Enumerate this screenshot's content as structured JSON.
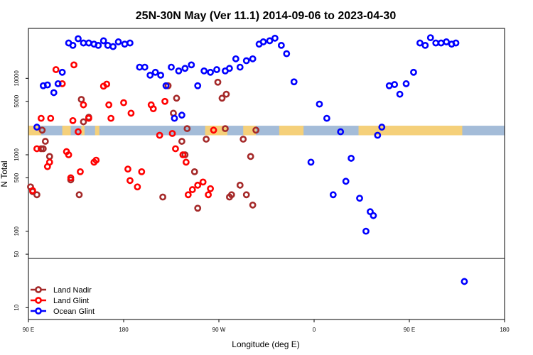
{
  "chart_data": {
    "type": "scatter",
    "title": "25N-30N May (Ver 11.1)   2014-09-06 to 2023-04-30",
    "xlabel": "Longitude (deg E)",
    "ylabel": "N Total",
    "x_range": [
      90,
      540
    ],
    "y_scale": "log",
    "y_range": [
      7,
      45000
    ],
    "x_ticks": [
      {
        "value": 90,
        "label": "90 E"
      },
      {
        "value": 180,
        "label": "180"
      },
      {
        "value": 270,
        "label": "90 W"
      },
      {
        "value": 360,
        "label": "0"
      },
      {
        "value": 450,
        "label": "90 E"
      },
      {
        "value": 540,
        "label": "180"
      }
    ],
    "y_ticks": [
      {
        "value": 10,
        "label": "10"
      },
      {
        "value": 50,
        "label": "50"
      },
      {
        "value": 100,
        "label": "100"
      },
      {
        "value": 500,
        "label": "500"
      },
      {
        "value": 1000,
        "label": "1000"
      },
      {
        "value": 5000,
        "label": "5000"
      },
      {
        "value": 10000,
        "label": "10000"
      }
    ],
    "separator_at": 50,
    "land_band": {
      "y_low": 1800,
      "y_high": 2400
    },
    "legend_position": "bottom-left",
    "colors": {
      "land_nadir": "#a52a2a",
      "land_glint": "#ff0000",
      "ocean_glint": "#0000ff",
      "ocean_band": "#a4bcd8",
      "land_band": "#f5d07a"
    },
    "series": [
      {
        "name": "Land Nadir",
        "color": "#a52a2a",
        "points": [
          [
            92,
            380
          ],
          [
            94,
            330
          ],
          [
            98,
            300
          ],
          [
            102,
            1200
          ],
          [
            103,
            2100
          ],
          [
            104,
            1200
          ],
          [
            106,
            1500
          ],
          [
            110,
            950
          ],
          [
            130,
            470
          ],
          [
            138,
            300
          ],
          [
            140,
            5300
          ],
          [
            142,
            2700
          ],
          [
            147,
            3100
          ],
          [
            217,
            280
          ],
          [
            222,
            8000
          ],
          [
            227,
            3500
          ],
          [
            230,
            5500
          ],
          [
            235,
            1500
          ],
          [
            238,
            1000
          ],
          [
            240,
            2200
          ],
          [
            247,
            600
          ],
          [
            250,
            200
          ],
          [
            258,
            1600
          ],
          [
            269,
            8900
          ],
          [
            273,
            5500
          ],
          [
            276,
            2200
          ],
          [
            277,
            6200
          ],
          [
            280,
            280
          ],
          [
            282,
            300
          ],
          [
            290,
            400
          ],
          [
            293,
            1600
          ],
          [
            296,
            300
          ],
          [
            300,
            950
          ],
          [
            302,
            220
          ],
          [
            305,
            2100
          ]
        ]
      },
      {
        "name": "Land Glint",
        "color": "#ff0000",
        "points": [
          [
            94,
            340
          ],
          [
            98,
            1200
          ],
          [
            102,
            3000
          ],
          [
            108,
            700
          ],
          [
            110,
            800
          ],
          [
            111,
            3000
          ],
          [
            147,
            3000
          ],
          [
            116,
            13000
          ],
          [
            126,
            1100
          ],
          [
            128,
            1000
          ],
          [
            130,
            500
          ],
          [
            132,
            2800
          ],
          [
            122,
            8500
          ],
          [
            133,
            15000
          ],
          [
            137,
            2000
          ],
          [
            139,
            600
          ],
          [
            142,
            4500
          ],
          [
            152,
            800
          ],
          [
            154,
            850
          ],
          [
            161,
            7900
          ],
          [
            164,
            8400
          ],
          [
            166,
            4500
          ],
          [
            168,
            3000
          ],
          [
            180,
            4800
          ],
          [
            184,
            650
          ],
          [
            186,
            460
          ],
          [
            187,
            3500
          ],
          [
            193,
            380
          ],
          [
            197,
            600
          ],
          [
            206,
            4500
          ],
          [
            208,
            4000
          ],
          [
            214,
            1800
          ],
          [
            219,
            5000
          ],
          [
            226,
            1900
          ],
          [
            229,
            1200
          ],
          [
            236,
            1000
          ],
          [
            239,
            800
          ],
          [
            241,
            300
          ],
          [
            245,
            350
          ],
          [
            250,
            400
          ],
          [
            255,
            440
          ],
          [
            260,
            300
          ],
          [
            262,
            360
          ],
          [
            265,
            2100
          ]
        ]
      },
      {
        "name": "Ocean Glint",
        "color": "#0000ff",
        "points": [
          [
            98,
            2300
          ],
          [
            104,
            8000
          ],
          [
            108,
            8200
          ],
          [
            114,
            6500
          ],
          [
            118,
            8500
          ],
          [
            122,
            12000
          ],
          [
            128,
            29000
          ],
          [
            132,
            27000
          ],
          [
            137,
            33000
          ],
          [
            142,
            29000
          ],
          [
            147,
            29000
          ],
          [
            152,
            28000
          ],
          [
            156,
            27000
          ],
          [
            161,
            31000
          ],
          [
            165,
            27000
          ],
          [
            170,
            26000
          ],
          [
            175,
            30000
          ],
          [
            181,
            28000
          ],
          [
            186,
            29000
          ],
          [
            195,
            14000
          ],
          [
            200,
            14000
          ],
          [
            205,
            11000
          ],
          [
            210,
            12000
          ],
          [
            215,
            11000
          ],
          [
            220,
            8000
          ],
          [
            225,
            14000
          ],
          [
            228,
            3000
          ],
          [
            232,
            12500
          ],
          [
            235,
            3300
          ],
          [
            238,
            13500
          ],
          [
            244,
            15000
          ],
          [
            250,
            8000
          ],
          [
            256,
            12500
          ],
          [
            262,
            12000
          ],
          [
            268,
            13000
          ],
          [
            276,
            12500
          ],
          [
            280,
            13500
          ],
          [
            286,
            18000
          ],
          [
            290,
            14000
          ],
          [
            296,
            17000
          ],
          [
            302,
            18000
          ],
          [
            308,
            28000
          ],
          [
            312,
            30000
          ],
          [
            318,
            31000
          ],
          [
            323,
            33500
          ],
          [
            329,
            27000
          ],
          [
            334,
            21000
          ],
          [
            341,
            9000
          ],
          [
            357,
            800
          ],
          [
            365,
            4600
          ],
          [
            372,
            3000
          ],
          [
            378,
            300
          ],
          [
            385,
            2000
          ],
          [
            390,
            450
          ],
          [
            395,
            900
          ],
          [
            403,
            270
          ],
          [
            409,
            100
          ],
          [
            413,
            180
          ],
          [
            416,
            160
          ],
          [
            420,
            1800
          ],
          [
            424,
            2300
          ],
          [
            431,
            8000
          ],
          [
            436,
            8300
          ],
          [
            441,
            6200
          ],
          [
            447,
            8500
          ],
          [
            454,
            12000
          ],
          [
            460,
            29000
          ],
          [
            465,
            27000
          ],
          [
            470,
            34000
          ],
          [
            475,
            29000
          ],
          [
            480,
            29000
          ],
          [
            485,
            30000
          ],
          [
            490,
            28000
          ],
          [
            494,
            29000
          ],
          [
            502,
            22
          ]
        ]
      }
    ]
  }
}
